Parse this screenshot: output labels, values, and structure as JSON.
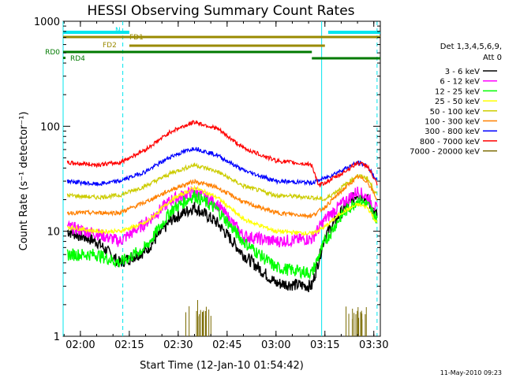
{
  "chart_data": {
    "type": "line",
    "title": "HESSI Observing Summary Count Rates",
    "xlabel": "Start Time (12-Jan-10 01:54:42)",
    "ylabel": "Count Rate (s⁻¹ detector⁻¹)",
    "yscale": "log",
    "ylim": [
      1,
      1000
    ],
    "xlim": [
      "01:54:42",
      "03:32:00"
    ],
    "x_ticks": [
      "02:00",
      "02:15",
      "02:30",
      "02:45",
      "03:00",
      "03:15",
      "03:30"
    ],
    "y_ticks": [
      "1",
      "10",
      "100",
      "1000"
    ],
    "legend_header": [
      "Det 1,3,4,5,6,9,",
      "Att 0"
    ],
    "legend_position": "right",
    "footer": "11-May-2010 09:23",
    "flag_labels": {
      "n": "N",
      "fd1": "FD1",
      "fd2": "FD2",
      "rd0": "RD0",
      "rd4": "RD4"
    },
    "flags": [
      {
        "label": "N",
        "color": "#00e5ee",
        "segments": [
          [
            "01:54:42",
            "02:15:00"
          ],
          [
            "03:16:00",
            "03:32:00"
          ]
        ]
      },
      {
        "label": "FD1",
        "color": "#9a8a00",
        "segments": [
          [
            "01:54:42",
            "03:32:00"
          ]
        ]
      },
      {
        "label": "FD2",
        "color": "#9a8a00",
        "segments": [
          [
            "02:15:00",
            "03:15:00"
          ]
        ]
      },
      {
        "label": "RD0",
        "color": "#007a00",
        "segments": [
          [
            "01:54:42",
            "03:11:00"
          ]
        ]
      },
      {
        "label": "RD4",
        "color": "#007a00",
        "segments": [
          [
            "03:11:00",
            "03:32:00"
          ]
        ]
      }
    ],
    "vertical_markers": [
      {
        "time": "01:54:42",
        "color": "#00e5ee",
        "style": "solid"
      },
      {
        "time": "02:13:00",
        "color": "#00e5ee",
        "style": "dashed"
      },
      {
        "time": "03:14:00",
        "color": "#00e5ee",
        "style": "solid"
      },
      {
        "time": "03:31:00",
        "color": "#00e5ee",
        "style": "dashed"
      }
    ],
    "series": [
      {
        "name": "3 - 6 keV",
        "color": "#000000",
        "points": [
          [
            "01:56",
            10
          ],
          [
            "02:05",
            8
          ],
          [
            "02:12",
            5
          ],
          [
            "02:20",
            6.5
          ],
          [
            "02:28",
            13
          ],
          [
            "02:35",
            17
          ],
          [
            "02:42",
            12
          ],
          [
            "02:50",
            6
          ],
          [
            "03:00",
            3.2
          ],
          [
            "03:11",
            3
          ],
          [
            "03:15",
            9
          ],
          [
            "03:20",
            15
          ],
          [
            "03:25",
            23
          ],
          [
            "03:28",
            20
          ],
          [
            "03:31",
            14
          ]
        ]
      },
      {
        "name": "6 - 12 keV",
        "color": "#ff00ff",
        "points": [
          [
            "01:56",
            11
          ],
          [
            "02:05",
            9.5
          ],
          [
            "02:12",
            8
          ],
          [
            "02:20",
            12
          ],
          [
            "02:28",
            20
          ],
          [
            "02:35",
            24
          ],
          [
            "02:42",
            18
          ],
          [
            "02:50",
            9
          ],
          [
            "03:00",
            8
          ],
          [
            "03:11",
            8.5
          ],
          [
            "03:15",
            13
          ],
          [
            "03:20",
            18
          ],
          [
            "03:25",
            24
          ],
          [
            "03:28",
            21
          ],
          [
            "03:31",
            16
          ]
        ]
      },
      {
        "name": "12 - 25 keV",
        "color": "#00ff00",
        "points": [
          [
            "01:56",
            6
          ],
          [
            "02:05",
            6
          ],
          [
            "02:12",
            5
          ],
          [
            "02:20",
            7
          ],
          [
            "02:28",
            16
          ],
          [
            "02:35",
            22
          ],
          [
            "02:42",
            16
          ],
          [
            "02:50",
            8
          ],
          [
            "03:00",
            4.5
          ],
          [
            "03:11",
            4
          ],
          [
            "03:15",
            8
          ],
          [
            "03:20",
            14
          ],
          [
            "03:25",
            20
          ],
          [
            "03:28",
            18
          ],
          [
            "03:31",
            13
          ]
        ]
      },
      {
        "name": "25 - 50 keV",
        "color": "#ffff00",
        "points": [
          [
            "01:56",
            11
          ],
          [
            "02:05",
            10
          ],
          [
            "02:12",
            10
          ],
          [
            "02:20",
            12
          ],
          [
            "02:28",
            20
          ],
          [
            "02:35",
            26
          ],
          [
            "02:42",
            21
          ],
          [
            "02:50",
            13
          ],
          [
            "03:00",
            10
          ],
          [
            "03:11",
            9.5
          ],
          [
            "03:15",
            11
          ],
          [
            "03:20",
            15
          ],
          [
            "03:25",
            18
          ],
          [
            "03:28",
            17
          ],
          [
            "03:31",
            12
          ]
        ]
      },
      {
        "name": "50 - 100 keV",
        "color": "#cccc00",
        "points": [
          [
            "01:56",
            22
          ],
          [
            "02:05",
            21
          ],
          [
            "02:12",
            22
          ],
          [
            "02:20",
            27
          ],
          [
            "02:28",
            36
          ],
          [
            "02:35",
            43
          ],
          [
            "02:42",
            37
          ],
          [
            "02:50",
            27
          ],
          [
            "03:00",
            22
          ],
          [
            "03:11",
            21
          ],
          [
            "03:15",
            20
          ],
          [
            "03:20",
            26
          ],
          [
            "03:25",
            34
          ],
          [
            "03:28",
            32
          ],
          [
            "03:31",
            22
          ]
        ]
      },
      {
        "name": "100 - 300 keV",
        "color": "#ff8000",
        "points": [
          [
            "01:56",
            15
          ],
          [
            "02:05",
            15
          ],
          [
            "02:12",
            15
          ],
          [
            "02:20",
            19
          ],
          [
            "02:28",
            25
          ],
          [
            "02:35",
            30
          ],
          [
            "02:42",
            26
          ],
          [
            "02:50",
            19
          ],
          [
            "03:00",
            15
          ],
          [
            "03:11",
            14
          ],
          [
            "03:15",
            17
          ],
          [
            "03:20",
            24
          ],
          [
            "03:25",
            33
          ],
          [
            "03:28",
            30
          ],
          [
            "03:31",
            20
          ]
        ]
      },
      {
        "name": "300 - 800 keV",
        "color": "#0000ff",
        "points": [
          [
            "01:56",
            30
          ],
          [
            "02:05",
            28
          ],
          [
            "02:12",
            30
          ],
          [
            "02:20",
            37
          ],
          [
            "02:28",
            52
          ],
          [
            "02:35",
            62
          ],
          [
            "02:42",
            53
          ],
          [
            "02:50",
            38
          ],
          [
            "03:00",
            30
          ],
          [
            "03:11",
            29
          ],
          [
            "03:15",
            32
          ],
          [
            "03:20",
            38
          ],
          [
            "03:25",
            45
          ],
          [
            "03:28",
            42
          ],
          [
            "03:31",
            30
          ]
        ]
      },
      {
        "name": "800 - 7000 keV",
        "color": "#ff0000",
        "points": [
          [
            "01:56",
            45
          ],
          [
            "02:05",
            43
          ],
          [
            "02:12",
            45
          ],
          [
            "02:20",
            60
          ],
          [
            "02:28",
            90
          ],
          [
            "02:35",
            110
          ],
          [
            "02:42",
            95
          ],
          [
            "02:50",
            62
          ],
          [
            "03:00",
            47
          ],
          [
            "03:11",
            43
          ],
          [
            "03:13",
            27
          ],
          [
            "03:20",
            35
          ],
          [
            "03:25",
            45
          ],
          [
            "03:28",
            42
          ],
          [
            "03:31",
            28
          ]
        ]
      },
      {
        "name": "7000 - 20000 keV",
        "color": "#7a6a00",
        "points": [
          [
            "02:35",
            1.6
          ],
          [
            "02:38",
            1.8
          ],
          [
            "03:24",
            1.6
          ],
          [
            "03:26",
            1.7
          ]
        ]
      }
    ]
  }
}
